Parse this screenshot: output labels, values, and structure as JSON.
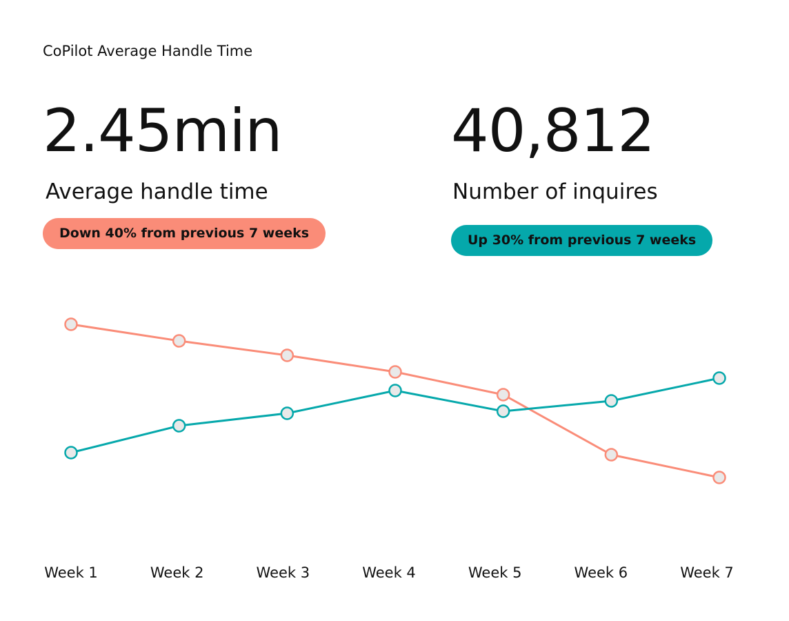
{
  "chart_data": {
    "type": "line",
    "title": "CoPilot Average Handle Time",
    "kpis": [
      {
        "value": "2.45min",
        "label": "Average handle time",
        "badge": "Down 40% from previous 7 weeks",
        "color": "#fa8c78"
      },
      {
        "value": "40,812",
        "label": "Number of inquires",
        "badge": "Up 30% from previous 7 weeks",
        "color": "#05a8ab"
      }
    ],
    "categories": [
      "Week 1",
      "Week 2",
      "Week 3",
      "Week 4",
      "Week 5",
      "Week 6",
      "Week 7"
    ],
    "series": [
      {
        "color": "#fa8c78",
        "values": [
          90,
          82,
          75,
          67,
          56,
          27,
          16
        ]
      },
      {
        "color": "#05a8ab",
        "values": [
          28,
          41,
          47,
          58,
          48,
          53,
          64
        ]
      }
    ],
    "ylim": [
      0,
      100
    ]
  }
}
